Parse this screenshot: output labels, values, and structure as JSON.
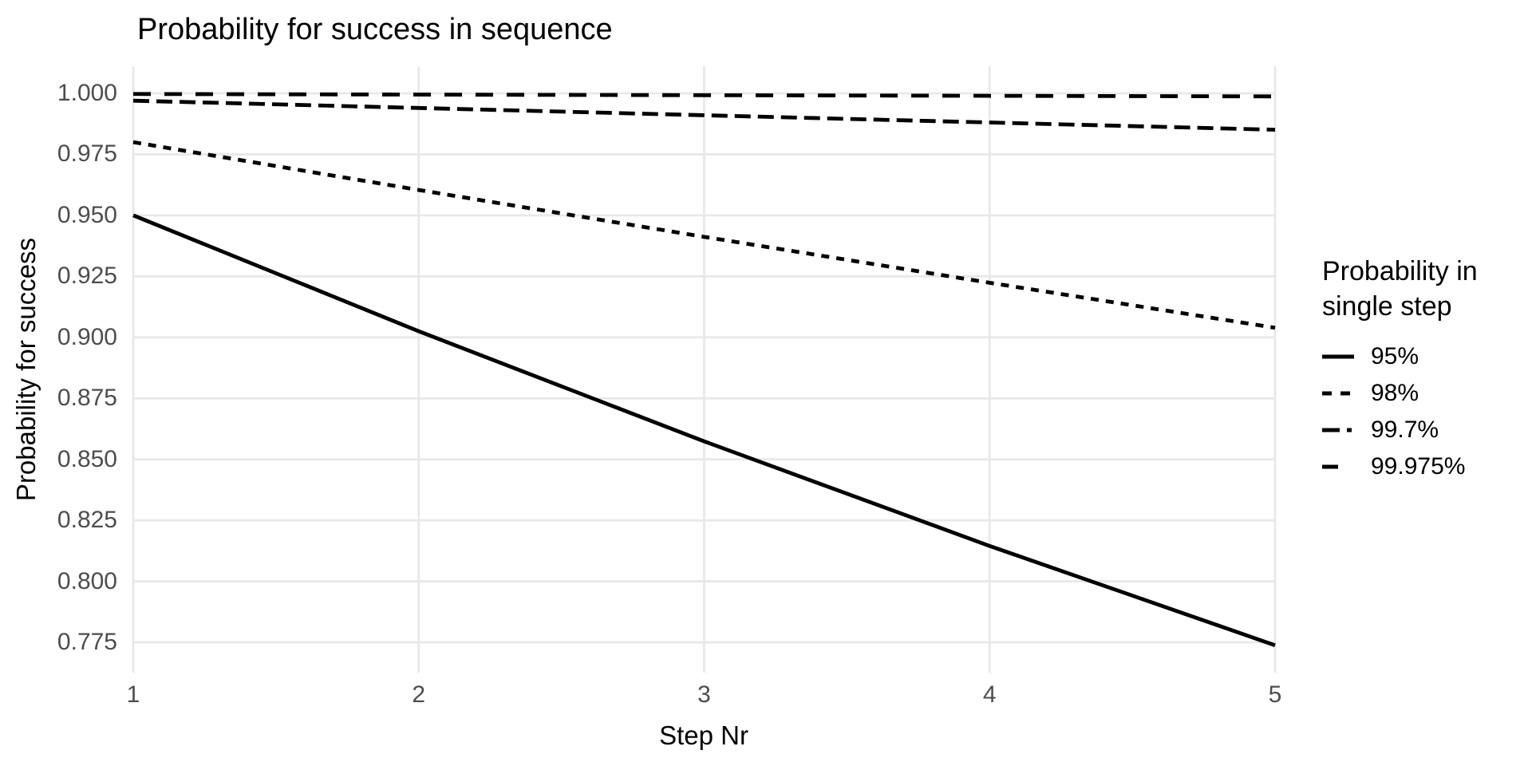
{
  "colors": {
    "background": "#FFFFFF",
    "grid": "#E8E8E8",
    "line": "#000000",
    "tick_label": "#4D4D4D",
    "text": "#000000"
  },
  "chart_data": {
    "type": "line",
    "title": "Probability for success in sequence",
    "xlabel": "Step Nr",
    "ylabel": "Probability for success",
    "x": [
      1,
      2,
      3,
      4,
      5
    ],
    "x_tick_labels": [
      "1",
      "2",
      "3",
      "4",
      "5"
    ],
    "yticks": [
      1.0,
      0.975,
      0.95,
      0.925,
      0.9,
      0.875,
      0.85,
      0.825,
      0.8,
      0.775
    ],
    "y_tick_labels": [
      "1.000",
      "0.975",
      "0.950",
      "0.925",
      "0.900",
      "0.875",
      "0.850",
      "0.825",
      "0.800",
      "0.775"
    ],
    "ylim": [
      0.775,
      1.0
    ],
    "xlim": [
      1,
      5
    ],
    "grid": "major-only",
    "legend_position": "right",
    "legend_title": "Probability in single step",
    "series": [
      {
        "name": "95%",
        "linetype": "solid",
        "values": [
          0.95,
          0.9025,
          0.857375,
          0.814506,
          0.773781
        ]
      },
      {
        "name": "98%",
        "linetype": "22",
        "values": [
          0.98,
          0.9604,
          0.941192,
          0.922368,
          0.903921
        ]
      },
      {
        "name": "99.7%",
        "linetype": "42",
        "values": [
          0.997,
          0.994009,
          0.991027,
          0.988054,
          0.98509
        ]
      },
      {
        "name": "99.975%",
        "linetype": "44",
        "values": [
          0.99975,
          0.9995,
          0.99925,
          0.999,
          0.99875
        ]
      }
    ]
  }
}
